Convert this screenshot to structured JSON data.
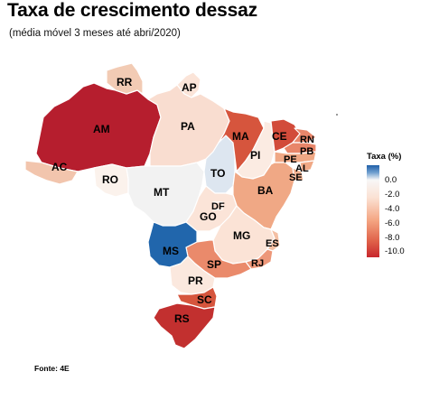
{
  "title": "Taxa de crescimento dessaz",
  "subtitle": "(média móvel 3 meses até abri/2020)",
  "legend": {
    "title": "Taxa (%)",
    "ticks": [
      "0.0",
      "-2.0",
      "-4.0",
      "-6.0",
      "-8.0",
      "-10.0"
    ],
    "colors": {
      "positive": "#1f5fa8",
      "zero": "#f7f7f7",
      "mid": "#f4a582",
      "low": "#c8272d"
    }
  },
  "states": {
    "AM": {
      "label": "AM"
    },
    "RR": {
      "label": "RR"
    },
    "AP": {
      "label": "AP"
    },
    "PA": {
      "label": "PA"
    },
    "AC": {
      "label": "AC"
    },
    "RO": {
      "label": "RO"
    },
    "MT": {
      "label": "MT"
    },
    "TO": {
      "label": "TO"
    },
    "MA": {
      "label": "MA"
    },
    "PI": {
      "label": "PI"
    },
    "CE": {
      "label": "CE"
    },
    "RN": {
      "label": "RN"
    },
    "PB": {
      "label": "PB"
    },
    "PE": {
      "label": "PE"
    },
    "AL": {
      "label": "AL"
    },
    "SE": {
      "label": "SE"
    },
    "BA": {
      "label": "BA"
    },
    "DF": {
      "label": "DF"
    },
    "GO": {
      "label": "GO"
    },
    "MG": {
      "label": "MG"
    },
    "ES": {
      "label": "ES"
    },
    "RJ": {
      "label": "RJ"
    },
    "SP": {
      "label": "SP"
    },
    "MS": {
      "label": "MS"
    },
    "PR": {
      "label": "PR"
    },
    "SC": {
      "label": "SC"
    },
    "RS": {
      "label": "RS"
    }
  },
  "source": "Fonte: 4E"
}
